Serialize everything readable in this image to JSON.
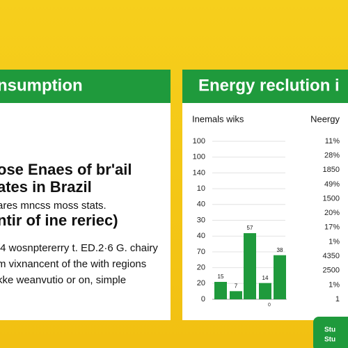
{
  "left_header": "nsumption",
  "right_header": "Energy reclution i",
  "left_panel": {
    "lines": [
      "ose Enaes of br'ail",
      "ates in Brazil",
      "ares mncss moss stats.",
      "ntir of ine reriec)",
      "/4 wosnptererry t. ED.2·6 G. chairy",
      "m vixnancent of the with regions",
      "kke weanvutio or on, simple"
    ]
  },
  "chart": {
    "title": "Inemals wiks",
    "axis_labels": [
      "100",
      "100",
      "140",
      "10",
      "40",
      "30",
      "40",
      "70",
      "20",
      "20",
      "0"
    ],
    "values": [
      15,
      7,
      57,
      14,
      38
    ],
    "base_label": "0"
  },
  "right_column": {
    "title": "Neergy",
    "values": [
      "11%",
      "28%",
      "1850",
      "49%",
      "1500",
      "20%",
      "17%",
      "1%",
      "4350",
      "2500",
      "1%",
      "1"
    ]
  },
  "badge": [
    "Stu",
    "Stu"
  ]
}
